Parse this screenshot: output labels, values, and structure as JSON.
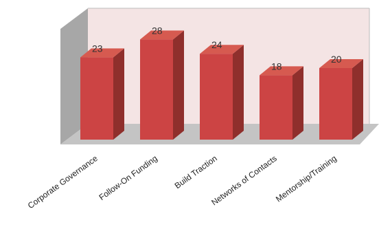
{
  "chart_data": {
    "type": "bar",
    "categories": [
      "Corporate Governance",
      "Follow-On Funding",
      "Build Traction",
      "Networks of Contacts",
      "Mentorship/Training"
    ],
    "values": [
      23,
      28,
      24,
      18,
      20
    ],
    "title": "",
    "xlabel": "",
    "ylabel": "",
    "ylim": [
      0,
      30
    ],
    "grid": false,
    "legend": "none",
    "style": "3d-column"
  },
  "colors": {
    "bar_front": "#cc4444",
    "bar_top": "#d65a50",
    "bar_side": "#8f2f2c",
    "back_wall": "#f4e4e4",
    "side_wall": "#a7a7a7",
    "floor": "#c4c4c4"
  }
}
